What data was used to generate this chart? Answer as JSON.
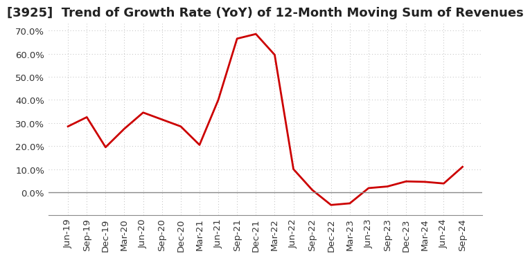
{
  "title": "[3925]  Trend of Growth Rate (YoY) of 12-Month Moving Sum of Revenues",
  "x_labels": [
    "Jun-19",
    "Sep-19",
    "Dec-19",
    "Mar-20",
    "Jun-20",
    "Sep-20",
    "Dec-20",
    "Mar-21",
    "Jun-21",
    "Sep-21",
    "Dec-21",
    "Mar-22",
    "Jun-22",
    "Sep-22",
    "Dec-22",
    "Mar-23",
    "Jun-23",
    "Sep-23",
    "Dec-23",
    "Mar-24",
    "Jun-24",
    "Sep-24"
  ],
  "y_values": [
    0.285,
    0.325,
    0.195,
    0.275,
    0.345,
    0.315,
    0.285,
    0.205,
    0.4,
    0.665,
    0.685,
    0.595,
    0.1,
    0.01,
    -0.055,
    -0.048,
    0.018,
    0.025,
    0.047,
    0.045,
    0.038,
    0.11
  ],
  "line_color": "#cc0000",
  "line_width": 2.0,
  "ylim": [
    -0.1,
    0.73
  ],
  "yticks": [
    0.0,
    0.1,
    0.2,
    0.3,
    0.4,
    0.5,
    0.6,
    0.7
  ],
  "grid_color": "#bbbbbb",
  "background_color": "#ffffff",
  "title_fontsize": 13,
  "tick_fontsize": 9.5,
  "zero_line_color": "#888888"
}
